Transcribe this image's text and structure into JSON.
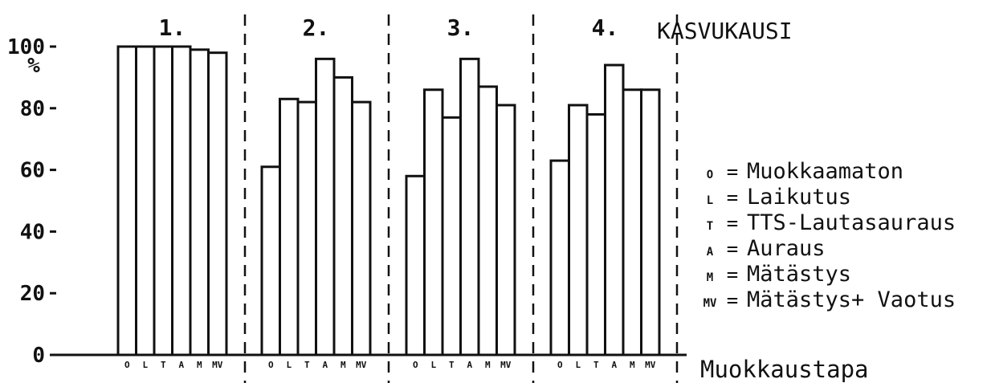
{
  "chart_data": {
    "type": "bar",
    "y_unit_label": "%",
    "ylim": [
      0,
      100
    ],
    "y_ticks": [
      "0",
      "20",
      "40",
      "60",
      "80",
      "100"
    ],
    "season_header": "KASVUKAUSI",
    "xlabel": "Muokkaustapa",
    "groups": [
      {
        "label": "1.",
        "categories": [
          "O",
          "L",
          "T",
          "A",
          "M",
          "MV"
        ],
        "values": [
          100,
          100,
          100,
          100,
          99,
          98
        ]
      },
      {
        "label": "2.",
        "categories": [
          "O",
          "L",
          "T",
          "A",
          "M",
          "MV"
        ],
        "values": [
          61,
          83,
          82,
          96,
          90,
          82
        ]
      },
      {
        "label": "3.",
        "categories": [
          "O",
          "L",
          "T",
          "A",
          "M",
          "MV"
        ],
        "values": [
          58,
          86,
          77,
          96,
          87,
          81
        ]
      },
      {
        "label": "4.",
        "categories": [
          "O",
          "L",
          "T",
          "A",
          "M",
          "MV"
        ],
        "values": [
          63,
          81,
          78,
          94,
          86,
          86
        ]
      }
    ],
    "legend": [
      {
        "code": "O",
        "text": "Muokkaamaton"
      },
      {
        "code": "L",
        "text": "Laikutus"
      },
      {
        "code": "T",
        "text": "TTS-Lautasauraus"
      },
      {
        "code": "A",
        "text": "Auraus"
      },
      {
        "code": "M",
        "text": "Mätästys"
      },
      {
        "code": "MV",
        "text": "Mätästys+ Vaotus"
      }
    ]
  }
}
